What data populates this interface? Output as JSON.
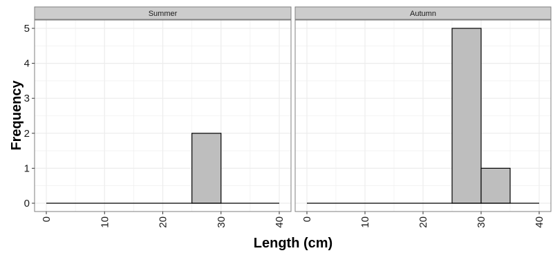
{
  "chart_data": {
    "type": "bar",
    "xlabel": "Length (cm)",
    "ylabel": "Frequency",
    "xlim": [
      0,
      40
    ],
    "ylim": [
      0,
      5
    ],
    "x_ticks": [
      "0",
      "10",
      "20",
      "30",
      "40"
    ],
    "y_ticks": [
      "0",
      "1",
      "2",
      "3",
      "4",
      "5"
    ],
    "bin_width": 5,
    "bin_starts": [
      0,
      5,
      10,
      15,
      20,
      25,
      30,
      35
    ],
    "grid": true,
    "colors": {
      "bar_fill": "#bebebe",
      "bar_stroke": "#000000",
      "strip_fill": "#cccccc",
      "grid": "#ececec",
      "panel_border": "#7f7f7f"
    },
    "panels": [
      {
        "title": "Summer",
        "counts": [
          0,
          0,
          0,
          0,
          0,
          2,
          0,
          0
        ]
      },
      {
        "title": "Autumn",
        "counts": [
          0,
          0,
          0,
          0,
          0,
          5,
          1,
          0
        ]
      }
    ]
  }
}
